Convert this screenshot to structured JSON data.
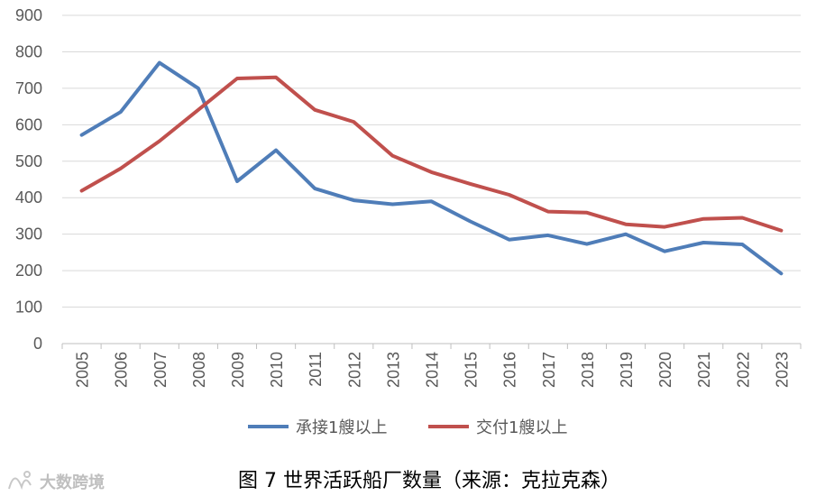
{
  "chart_data": {
    "type": "line",
    "categories": [
      "2005",
      "2006",
      "2007",
      "2008",
      "2009",
      "2010",
      "2011",
      "2012",
      "2013",
      "2014",
      "2015",
      "2016",
      "2017",
      "2018",
      "2019",
      "2020",
      "2021",
      "2022",
      "2023"
    ],
    "series": [
      {
        "name": "承接1艘以上",
        "color": "#4f7db8",
        "values": [
          572,
          635,
          770,
          700,
          445,
          530,
          425,
          393,
          382,
          390,
          335,
          285,
          297,
          273,
          300,
          253,
          277,
          272,
          192
        ]
      },
      {
        "name": "交付1艘以上",
        "color": "#c0504d",
        "values": [
          419,
          480,
          555,
          641,
          727,
          730,
          641,
          608,
          515,
          470,
          438,
          408,
          362,
          359,
          327,
          320,
          342,
          345,
          310
        ]
      }
    ],
    "ylim": [
      0,
      900
    ],
    "yticks": [
      0,
      100,
      200,
      300,
      400,
      500,
      600,
      700,
      800,
      900
    ],
    "grid": true,
    "legend_position": "bottom-center",
    "caption": "图 7 世界活跃船厂数量（来源：克拉克森）"
  },
  "watermark": {
    "text": "大数跨境"
  }
}
